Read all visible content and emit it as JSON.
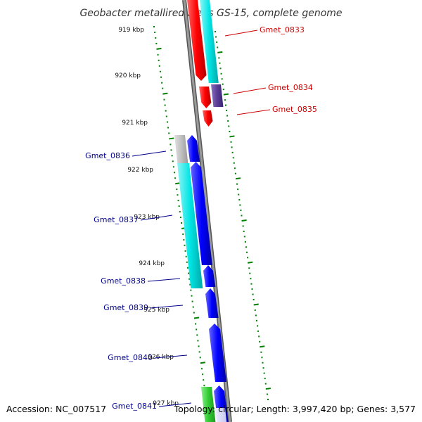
{
  "title": "Geobacter metallireducens GS-15, complete genome",
  "footer": {
    "accession": "Accession: NC_007517",
    "topology": "Topology: circular; Length: 3,997,420 bp; Genes: 3,577"
  },
  "ruler": [
    "919 kbp",
    "920 kbp",
    "921 kbp",
    "922 kbp",
    "923 kbp",
    "924 kbp",
    "925 kbp",
    "926 kbp",
    "927 kbp"
  ],
  "genes": [
    {
      "name": "Gmet_0833",
      "strand": "+"
    },
    {
      "name": "Gmet_0834",
      "strand": "+"
    },
    {
      "name": "Gmet_0835",
      "strand": "+"
    },
    {
      "name": "Gmet_0836",
      "strand": "-"
    },
    {
      "name": "Gmet_0837",
      "strand": "-"
    },
    {
      "name": "Gmet_0838",
      "strand": "-"
    },
    {
      "name": "Gmet_0839",
      "strand": "-"
    },
    {
      "name": "Gmet_0840",
      "strand": "-"
    },
    {
      "name": "Gmet_0841",
      "strand": "-"
    }
  ],
  "colors": {
    "forward_gene": "#ff0000",
    "reverse_gene": "#0000ff",
    "annotation_cyan": "#00e5e5",
    "annotation_purple": "#5a3c96",
    "annotation_grey": "#c0c0c0",
    "annotation_green": "#33cc33",
    "backbone": "#808080",
    "tick": "#008000"
  }
}
